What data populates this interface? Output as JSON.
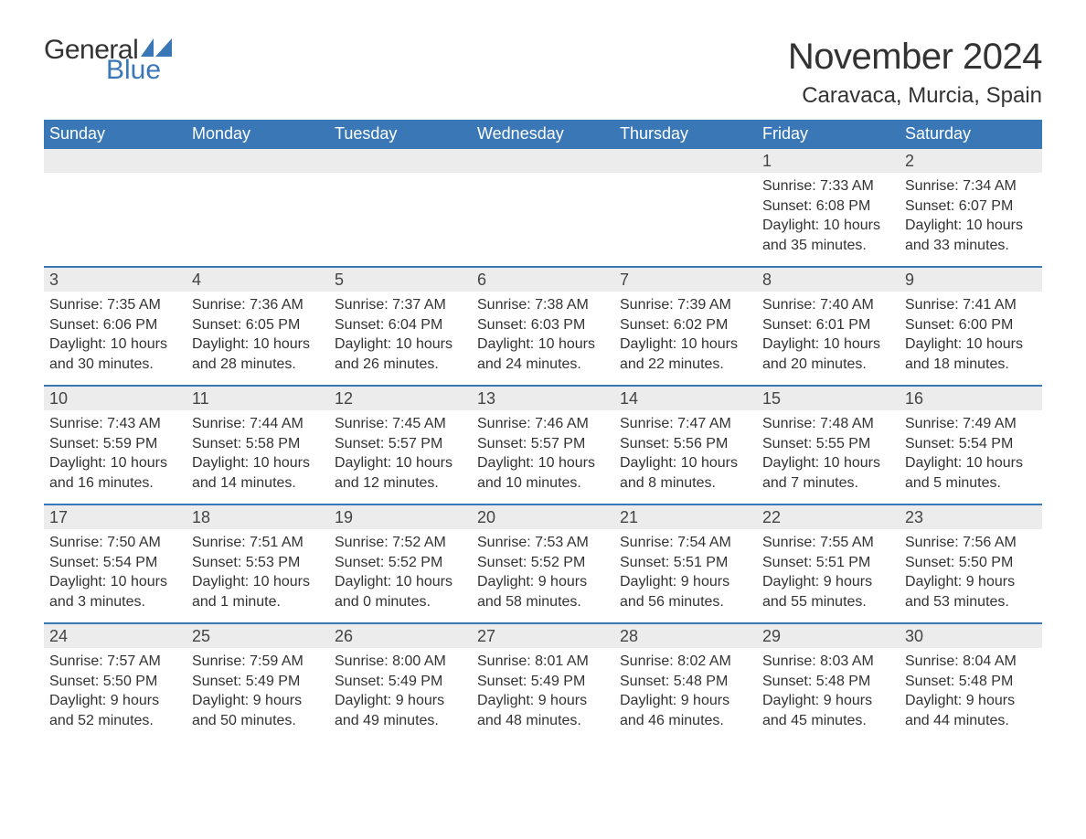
{
  "logo": {
    "text_general": "General",
    "text_blue": "Blue",
    "flag_color": "#3a77b7"
  },
  "title": "November 2024",
  "location": "Caravaca, Murcia, Spain",
  "colors": {
    "header_bg": "#3a77b7",
    "header_text": "#ffffff",
    "daynum_bg": "#ececec",
    "week_border": "#3a77b7",
    "body_text": "#333333"
  },
  "weekdays": [
    "Sunday",
    "Monday",
    "Tuesday",
    "Wednesday",
    "Thursday",
    "Friday",
    "Saturday"
  ],
  "weeks": [
    [
      {
        "n": "",
        "sunrise": "",
        "sunset": "",
        "daylight": ""
      },
      {
        "n": "",
        "sunrise": "",
        "sunset": "",
        "daylight": ""
      },
      {
        "n": "",
        "sunrise": "",
        "sunset": "",
        "daylight": ""
      },
      {
        "n": "",
        "sunrise": "",
        "sunset": "",
        "daylight": ""
      },
      {
        "n": "",
        "sunrise": "",
        "sunset": "",
        "daylight": ""
      },
      {
        "n": "1",
        "sunrise": "Sunrise: 7:33 AM",
        "sunset": "Sunset: 6:08 PM",
        "daylight": "Daylight: 10 hours and 35 minutes."
      },
      {
        "n": "2",
        "sunrise": "Sunrise: 7:34 AM",
        "sunset": "Sunset: 6:07 PM",
        "daylight": "Daylight: 10 hours and 33 minutes."
      }
    ],
    [
      {
        "n": "3",
        "sunrise": "Sunrise: 7:35 AM",
        "sunset": "Sunset: 6:06 PM",
        "daylight": "Daylight: 10 hours and 30 minutes."
      },
      {
        "n": "4",
        "sunrise": "Sunrise: 7:36 AM",
        "sunset": "Sunset: 6:05 PM",
        "daylight": "Daylight: 10 hours and 28 minutes."
      },
      {
        "n": "5",
        "sunrise": "Sunrise: 7:37 AM",
        "sunset": "Sunset: 6:04 PM",
        "daylight": "Daylight: 10 hours and 26 minutes."
      },
      {
        "n": "6",
        "sunrise": "Sunrise: 7:38 AM",
        "sunset": "Sunset: 6:03 PM",
        "daylight": "Daylight: 10 hours and 24 minutes."
      },
      {
        "n": "7",
        "sunrise": "Sunrise: 7:39 AM",
        "sunset": "Sunset: 6:02 PM",
        "daylight": "Daylight: 10 hours and 22 minutes."
      },
      {
        "n": "8",
        "sunrise": "Sunrise: 7:40 AM",
        "sunset": "Sunset: 6:01 PM",
        "daylight": "Daylight: 10 hours and 20 minutes."
      },
      {
        "n": "9",
        "sunrise": "Sunrise: 7:41 AM",
        "sunset": "Sunset: 6:00 PM",
        "daylight": "Daylight: 10 hours and 18 minutes."
      }
    ],
    [
      {
        "n": "10",
        "sunrise": "Sunrise: 7:43 AM",
        "sunset": "Sunset: 5:59 PM",
        "daylight": "Daylight: 10 hours and 16 minutes."
      },
      {
        "n": "11",
        "sunrise": "Sunrise: 7:44 AM",
        "sunset": "Sunset: 5:58 PM",
        "daylight": "Daylight: 10 hours and 14 minutes."
      },
      {
        "n": "12",
        "sunrise": "Sunrise: 7:45 AM",
        "sunset": "Sunset: 5:57 PM",
        "daylight": "Daylight: 10 hours and 12 minutes."
      },
      {
        "n": "13",
        "sunrise": "Sunrise: 7:46 AM",
        "sunset": "Sunset: 5:57 PM",
        "daylight": "Daylight: 10 hours and 10 minutes."
      },
      {
        "n": "14",
        "sunrise": "Sunrise: 7:47 AM",
        "sunset": "Sunset: 5:56 PM",
        "daylight": "Daylight: 10 hours and 8 minutes."
      },
      {
        "n": "15",
        "sunrise": "Sunrise: 7:48 AM",
        "sunset": "Sunset: 5:55 PM",
        "daylight": "Daylight: 10 hours and 7 minutes."
      },
      {
        "n": "16",
        "sunrise": "Sunrise: 7:49 AM",
        "sunset": "Sunset: 5:54 PM",
        "daylight": "Daylight: 10 hours and 5 minutes."
      }
    ],
    [
      {
        "n": "17",
        "sunrise": "Sunrise: 7:50 AM",
        "sunset": "Sunset: 5:54 PM",
        "daylight": "Daylight: 10 hours and 3 minutes."
      },
      {
        "n": "18",
        "sunrise": "Sunrise: 7:51 AM",
        "sunset": "Sunset: 5:53 PM",
        "daylight": "Daylight: 10 hours and 1 minute."
      },
      {
        "n": "19",
        "sunrise": "Sunrise: 7:52 AM",
        "sunset": "Sunset: 5:52 PM",
        "daylight": "Daylight: 10 hours and 0 minutes."
      },
      {
        "n": "20",
        "sunrise": "Sunrise: 7:53 AM",
        "sunset": "Sunset: 5:52 PM",
        "daylight": "Daylight: 9 hours and 58 minutes."
      },
      {
        "n": "21",
        "sunrise": "Sunrise: 7:54 AM",
        "sunset": "Sunset: 5:51 PM",
        "daylight": "Daylight: 9 hours and 56 minutes."
      },
      {
        "n": "22",
        "sunrise": "Sunrise: 7:55 AM",
        "sunset": "Sunset: 5:51 PM",
        "daylight": "Daylight: 9 hours and 55 minutes."
      },
      {
        "n": "23",
        "sunrise": "Sunrise: 7:56 AM",
        "sunset": "Sunset: 5:50 PM",
        "daylight": "Daylight: 9 hours and 53 minutes."
      }
    ],
    [
      {
        "n": "24",
        "sunrise": "Sunrise: 7:57 AM",
        "sunset": "Sunset: 5:50 PM",
        "daylight": "Daylight: 9 hours and 52 minutes."
      },
      {
        "n": "25",
        "sunrise": "Sunrise: 7:59 AM",
        "sunset": "Sunset: 5:49 PM",
        "daylight": "Daylight: 9 hours and 50 minutes."
      },
      {
        "n": "26",
        "sunrise": "Sunrise: 8:00 AM",
        "sunset": "Sunset: 5:49 PM",
        "daylight": "Daylight: 9 hours and 49 minutes."
      },
      {
        "n": "27",
        "sunrise": "Sunrise: 8:01 AM",
        "sunset": "Sunset: 5:49 PM",
        "daylight": "Daylight: 9 hours and 48 minutes."
      },
      {
        "n": "28",
        "sunrise": "Sunrise: 8:02 AM",
        "sunset": "Sunset: 5:48 PM",
        "daylight": "Daylight: 9 hours and 46 minutes."
      },
      {
        "n": "29",
        "sunrise": "Sunrise: 8:03 AM",
        "sunset": "Sunset: 5:48 PM",
        "daylight": "Daylight: 9 hours and 45 minutes."
      },
      {
        "n": "30",
        "sunrise": "Sunrise: 8:04 AM",
        "sunset": "Sunset: 5:48 PM",
        "daylight": "Daylight: 9 hours and 44 minutes."
      }
    ]
  ]
}
